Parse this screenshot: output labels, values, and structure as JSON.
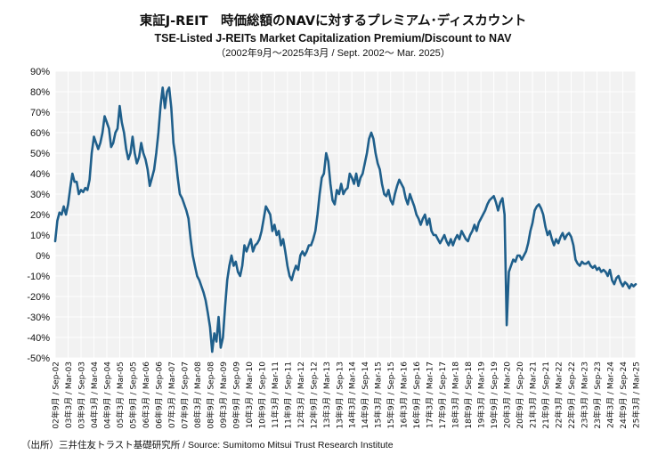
{
  "header": {
    "title_ja": "東証J-REIT　時価総額のNAVに対するプレミアム･ディスカウント",
    "title_en": "TSE-Listed  J-REITs Market Capitalization Premium/Discount  to NAV",
    "period": "（2002年9月～2025年3月 /  Sept. 2002～ Mar. 2025）"
  },
  "source": "（出所）三井住友トラスト基礎研究所 / Source: Sumitomo Mitsui Trust Research Institute",
  "colors": {
    "line": "#1f5f8b",
    "plot_bg": "#f2f2f2",
    "grid": "#ffffff"
  },
  "chart_data": {
    "type": "line",
    "title": "TSE-Listed  J-REITs Market Capitalization Premium/Discount  to NAV",
    "ylim": [
      -50,
      90
    ],
    "yticks": [
      "90%",
      "80%",
      "70%",
      "60%",
      "50%",
      "40%",
      "30%",
      "20%",
      "10%",
      "0%",
      "-10%",
      "-20%",
      "-30%",
      "-40%",
      "-50%"
    ],
    "xlim": [
      2002.667,
      2025.167
    ],
    "xticks": [
      "02年9月 / Sep-02",
      "03年3月 / Mar-03",
      "03年9月 / Sep-03",
      "04年3月 / Mar-04",
      "04年9月 / Sep-04",
      "05年3月 / Mar-05",
      "05年9月 / Sep-05",
      "06年3月 / Mar-06",
      "06年9月 / Sep-06",
      "07年3月 / Mar-07",
      "07年9月 / Sep-07",
      "08年3月 / Mar-08",
      "08年9月 / Sep-08",
      "09年3月 / Mar-09",
      "09年9月 / Sep-09",
      "10年3月 / Mar-10",
      "10年9月 / Sep-10",
      "11年3月 / Mar-11",
      "11年9月 / Sep-11",
      "12年3月 / Mar-12",
      "12年9月 / Sep-12",
      "13年3月 / Mar-13",
      "13年9月 / Sep-13",
      "14年3月 / Mar-14",
      "14年9月 / Sep-14",
      "15年3月 / Mar-15",
      "15年9月 / Sep-15",
      "16年3月 / Mar-16",
      "16年9月 / Sep-16",
      "17年3月 / Mar-17",
      "17年9月 / Sep-17",
      "18年3月 / Mar-18",
      "18年9月 / Sep-18",
      "19年3月 / Mar-19",
      "19年9月 / Sep-19",
      "20年3月 / Mar-20",
      "20年9月 / Sep-20",
      "21年3月 / Mar-21",
      "21年9月 / Sep-21",
      "22年3月 / Mar-22",
      "22年9月 / Sep-22",
      "23年3月 / Mar-23",
      "23年9月 / Sep-23",
      "24年3月 / Mar-24",
      "24年9月 / Sep-24",
      "25年3月 / Mar-25"
    ],
    "grid": true,
    "series": [
      {
        "values": [
          [
            2002.667,
            7
          ],
          [
            2002.75,
            17
          ],
          [
            2002.833,
            21
          ],
          [
            2002.917,
            20
          ],
          [
            2003.0,
            24
          ],
          [
            2003.083,
            20
          ],
          [
            2003.167,
            25
          ],
          [
            2003.25,
            33
          ],
          [
            2003.333,
            40
          ],
          [
            2003.417,
            36
          ],
          [
            2003.5,
            36
          ],
          [
            2003.583,
            30
          ],
          [
            2003.667,
            32
          ],
          [
            2003.75,
            31
          ],
          [
            2003.833,
            33
          ],
          [
            2003.917,
            32
          ],
          [
            2004.0,
            37
          ],
          [
            2004.083,
            50
          ],
          [
            2004.167,
            58
          ],
          [
            2004.25,
            55
          ],
          [
            2004.333,
            52
          ],
          [
            2004.417,
            55
          ],
          [
            2004.5,
            60
          ],
          [
            2004.583,
            68
          ],
          [
            2004.667,
            65
          ],
          [
            2004.75,
            62
          ],
          [
            2004.833,
            53
          ],
          [
            2004.917,
            55
          ],
          [
            2005.0,
            60
          ],
          [
            2005.083,
            62
          ],
          [
            2005.167,
            73
          ],
          [
            2005.25,
            65
          ],
          [
            2005.333,
            60
          ],
          [
            2005.417,
            52
          ],
          [
            2005.5,
            47
          ],
          [
            2005.583,
            50
          ],
          [
            2005.667,
            58
          ],
          [
            2005.75,
            50
          ],
          [
            2005.833,
            45
          ],
          [
            2005.917,
            48
          ],
          [
            2006.0,
            55
          ],
          [
            2006.083,
            50
          ],
          [
            2006.167,
            47
          ],
          [
            2006.25,
            42
          ],
          [
            2006.333,
            34
          ],
          [
            2006.417,
            38
          ],
          [
            2006.5,
            42
          ],
          [
            2006.583,
            50
          ],
          [
            2006.667,
            60
          ],
          [
            2006.75,
            73
          ],
          [
            2006.833,
            82
          ],
          [
            2006.917,
            72
          ],
          [
            2007.0,
            80
          ],
          [
            2007.083,
            82
          ],
          [
            2007.167,
            72
          ],
          [
            2007.25,
            55
          ],
          [
            2007.333,
            48
          ],
          [
            2007.417,
            38
          ],
          [
            2007.5,
            30
          ],
          [
            2007.583,
            28
          ],
          [
            2007.667,
            25
          ],
          [
            2007.75,
            22
          ],
          [
            2007.833,
            18
          ],
          [
            2007.917,
            8
          ],
          [
            2008.0,
            0
          ],
          [
            2008.083,
            -5
          ],
          [
            2008.167,
            -10
          ],
          [
            2008.25,
            -12
          ],
          [
            2008.333,
            -15
          ],
          [
            2008.417,
            -18
          ],
          [
            2008.5,
            -22
          ],
          [
            2008.583,
            -28
          ],
          [
            2008.667,
            -35
          ],
          [
            2008.75,
            -47
          ],
          [
            2008.833,
            -38
          ],
          [
            2008.917,
            -42
          ],
          [
            2009.0,
            -30
          ],
          [
            2009.083,
            -45
          ],
          [
            2009.167,
            -40
          ],
          [
            2009.25,
            -25
          ],
          [
            2009.333,
            -12
          ],
          [
            2009.417,
            -5
          ],
          [
            2009.5,
            0
          ],
          [
            2009.583,
            -5
          ],
          [
            2009.667,
            -3
          ],
          [
            2009.75,
            -8
          ],
          [
            2009.833,
            -10
          ],
          [
            2009.917,
            -5
          ],
          [
            2010.0,
            5
          ],
          [
            2010.083,
            2
          ],
          [
            2010.167,
            5
          ],
          [
            2010.25,
            8
          ],
          [
            2010.333,
            2
          ],
          [
            2010.417,
            5
          ],
          [
            2010.5,
            6
          ],
          [
            2010.583,
            8
          ],
          [
            2010.667,
            12
          ],
          [
            2010.75,
            18
          ],
          [
            2010.833,
            24
          ],
          [
            2010.917,
            22
          ],
          [
            2011.0,
            20
          ],
          [
            2011.083,
            12
          ],
          [
            2011.167,
            15
          ],
          [
            2011.25,
            10
          ],
          [
            2011.333,
            12
          ],
          [
            2011.417,
            5
          ],
          [
            2011.5,
            8
          ],
          [
            2011.583,
            2
          ],
          [
            2011.667,
            -5
          ],
          [
            2011.75,
            -10
          ],
          [
            2011.833,
            -12
          ],
          [
            2011.917,
            -8
          ],
          [
            2012.0,
            -5
          ],
          [
            2012.083,
            -7
          ],
          [
            2012.167,
            0
          ],
          [
            2012.25,
            2
          ],
          [
            2012.333,
            0
          ],
          [
            2012.417,
            2
          ],
          [
            2012.5,
            5
          ],
          [
            2012.583,
            5
          ],
          [
            2012.667,
            8
          ],
          [
            2012.75,
            12
          ],
          [
            2012.833,
            20
          ],
          [
            2012.917,
            30
          ],
          [
            2013.0,
            38
          ],
          [
            2013.083,
            40
          ],
          [
            2013.167,
            50
          ],
          [
            2013.25,
            46
          ],
          [
            2013.333,
            35
          ],
          [
            2013.417,
            27
          ],
          [
            2013.5,
            25
          ],
          [
            2013.583,
            32
          ],
          [
            2013.667,
            30
          ],
          [
            2013.75,
            35
          ],
          [
            2013.833,
            30
          ],
          [
            2013.917,
            32
          ],
          [
            2014.0,
            33
          ],
          [
            2014.083,
            40
          ],
          [
            2014.167,
            38
          ],
          [
            2014.25,
            35
          ],
          [
            2014.333,
            40
          ],
          [
            2014.417,
            34
          ],
          [
            2014.5,
            38
          ],
          [
            2014.583,
            40
          ],
          [
            2014.667,
            45
          ],
          [
            2014.75,
            50
          ],
          [
            2014.833,
            57
          ],
          [
            2014.917,
            60
          ],
          [
            2015.0,
            57
          ],
          [
            2015.083,
            50
          ],
          [
            2015.167,
            45
          ],
          [
            2015.25,
            42
          ],
          [
            2015.333,
            35
          ],
          [
            2015.417,
            30
          ],
          [
            2015.5,
            29
          ],
          [
            2015.583,
            32
          ],
          [
            2015.667,
            27
          ],
          [
            2015.75,
            25
          ],
          [
            2015.833,
            30
          ],
          [
            2015.917,
            34
          ],
          [
            2016.0,
            37
          ],
          [
            2016.083,
            35
          ],
          [
            2016.167,
            33
          ],
          [
            2016.25,
            28
          ],
          [
            2016.333,
            25
          ],
          [
            2016.417,
            30
          ],
          [
            2016.5,
            27
          ],
          [
            2016.583,
            24
          ],
          [
            2016.667,
            20
          ],
          [
            2016.75,
            18
          ],
          [
            2016.833,
            15
          ],
          [
            2016.917,
            18
          ],
          [
            2017.0,
            20
          ],
          [
            2017.083,
            15
          ],
          [
            2017.167,
            18
          ],
          [
            2017.25,
            12
          ],
          [
            2017.333,
            10
          ],
          [
            2017.417,
            10
          ],
          [
            2017.5,
            8
          ],
          [
            2017.583,
            6
          ],
          [
            2017.667,
            8
          ],
          [
            2017.75,
            10
          ],
          [
            2017.833,
            7
          ],
          [
            2017.917,
            5
          ],
          [
            2018.0,
            8
          ],
          [
            2018.083,
            5
          ],
          [
            2018.167,
            8
          ],
          [
            2018.25,
            10
          ],
          [
            2018.333,
            8
          ],
          [
            2018.417,
            12
          ],
          [
            2018.5,
            10
          ],
          [
            2018.583,
            8
          ],
          [
            2018.667,
            7
          ],
          [
            2018.75,
            10
          ],
          [
            2018.833,
            12
          ],
          [
            2018.917,
            15
          ],
          [
            2019.0,
            12
          ],
          [
            2019.083,
            16
          ],
          [
            2019.167,
            18
          ],
          [
            2019.25,
            20
          ],
          [
            2019.333,
            22
          ],
          [
            2019.417,
            25
          ],
          [
            2019.5,
            27
          ],
          [
            2019.583,
            28
          ],
          [
            2019.667,
            29
          ],
          [
            2019.75,
            26
          ],
          [
            2019.833,
            22
          ],
          [
            2019.917,
            26
          ],
          [
            2020.0,
            28
          ],
          [
            2020.083,
            20
          ],
          [
            2020.167,
            -34
          ],
          [
            2020.25,
            -8
          ],
          [
            2020.333,
            -5
          ],
          [
            2020.417,
            -2
          ],
          [
            2020.5,
            -3
          ],
          [
            2020.583,
            0
          ],
          [
            2020.667,
            0
          ],
          [
            2020.75,
            -2
          ],
          [
            2020.833,
            0
          ],
          [
            2020.917,
            2
          ],
          [
            2021.0,
            6
          ],
          [
            2021.083,
            12
          ],
          [
            2021.167,
            16
          ],
          [
            2021.25,
            22
          ],
          [
            2021.333,
            24
          ],
          [
            2021.417,
            25
          ],
          [
            2021.5,
            23
          ],
          [
            2021.583,
            20
          ],
          [
            2021.667,
            14
          ],
          [
            2021.75,
            10
          ],
          [
            2021.833,
            12
          ],
          [
            2021.917,
            8
          ],
          [
            2022.0,
            5
          ],
          [
            2022.083,
            8
          ],
          [
            2022.167,
            6
          ],
          [
            2022.25,
            9
          ],
          [
            2022.333,
            11
          ],
          [
            2022.417,
            8
          ],
          [
            2022.5,
            10
          ],
          [
            2022.583,
            11
          ],
          [
            2022.667,
            9
          ],
          [
            2022.75,
            5
          ],
          [
            2022.833,
            -2
          ],
          [
            2022.917,
            -4
          ],
          [
            2023.0,
            -5
          ],
          [
            2023.083,
            -3
          ],
          [
            2023.167,
            -4
          ],
          [
            2023.25,
            -4
          ],
          [
            2023.333,
            -3
          ],
          [
            2023.417,
            -5
          ],
          [
            2023.5,
            -6
          ],
          [
            2023.583,
            -5
          ],
          [
            2023.667,
            -7
          ],
          [
            2023.75,
            -6
          ],
          [
            2023.833,
            -8
          ],
          [
            2023.917,
            -7
          ],
          [
            2024.0,
            -8
          ],
          [
            2024.083,
            -10
          ],
          [
            2024.167,
            -7
          ],
          [
            2024.25,
            -12
          ],
          [
            2024.333,
            -14
          ],
          [
            2024.417,
            -11
          ],
          [
            2024.5,
            -10
          ],
          [
            2024.583,
            -13
          ],
          [
            2024.667,
            -15
          ],
          [
            2024.75,
            -13
          ],
          [
            2024.833,
            -14
          ],
          [
            2024.917,
            -16
          ],
          [
            2025.0,
            -14
          ],
          [
            2025.083,
            -15
          ],
          [
            2025.167,
            -14
          ]
        ]
      }
    ]
  }
}
